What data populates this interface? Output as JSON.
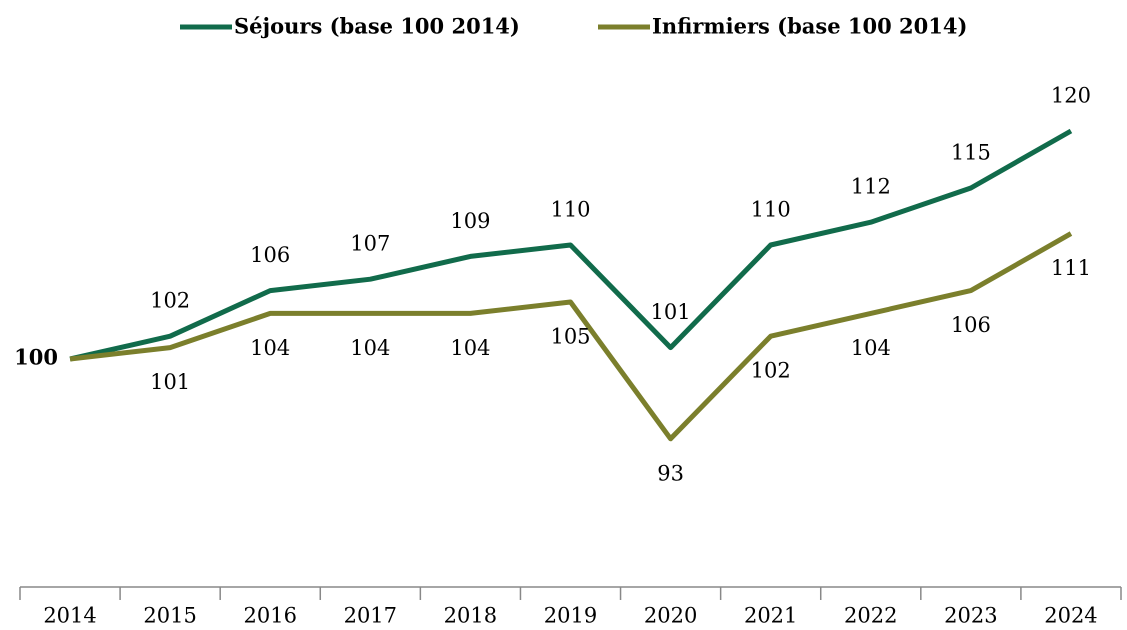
{
  "chart_data": {
    "type": "line",
    "categories": [
      "2014",
      "2015",
      "2016",
      "2017",
      "2018",
      "2019",
      "2020",
      "2021",
      "2022",
      "2023",
      "2024"
    ],
    "series": [
      {
        "name": "Séjours (base 100 2014)",
        "color": "#116b4b",
        "values": [
          100,
          102,
          106,
          107,
          109,
          110,
          101,
          110,
          112,
          115,
          120
        ]
      },
      {
        "name": "Infirmiers (base 100 2014)",
        "color": "#7b7f2c",
        "values": [
          100,
          101,
          104,
          104,
          104,
          105,
          93,
          102,
          104,
          106,
          111
        ]
      }
    ],
    "ylim": [
      80,
      125
    ],
    "legend": "top"
  }
}
